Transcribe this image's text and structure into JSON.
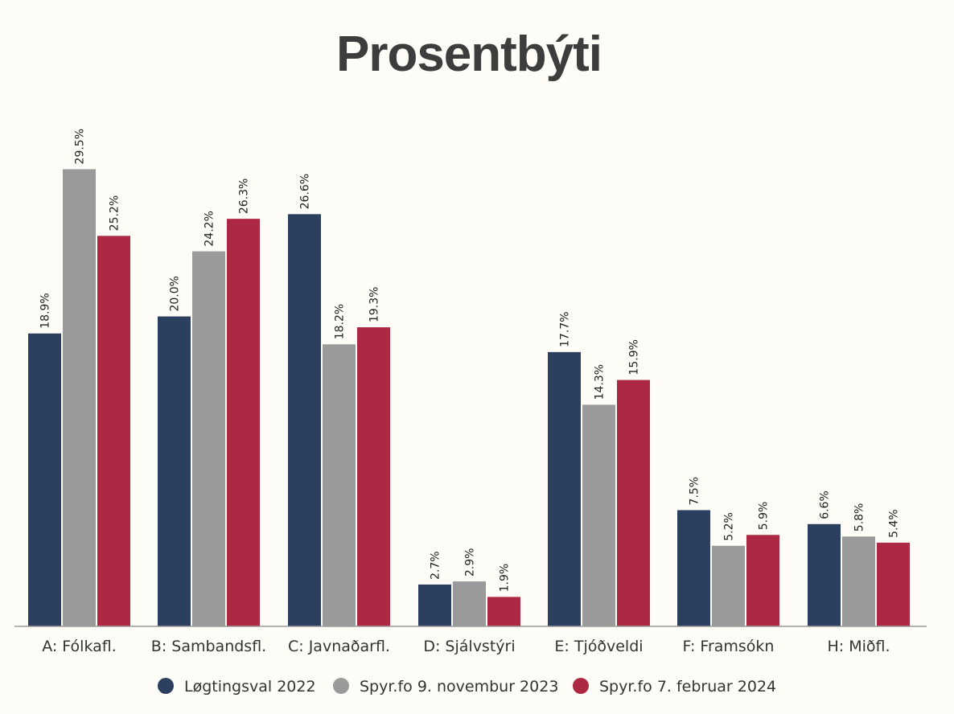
{
  "chart_data": {
    "type": "bar",
    "title": "Prosentbýti",
    "xlabel": "",
    "ylabel": "",
    "ylim": [
      0,
      33
    ],
    "grid": false,
    "legend_position": "bottom",
    "value_suffix": "%",
    "categories": [
      "A: Fólkafl.",
      "B: Sambandsfl.",
      "C: Javnaðarfl.",
      "D: Sjálvstýri",
      "E: Tjóðveldi",
      "F: Framsókn",
      "H: Miðfl."
    ],
    "series": [
      {
        "name": "Løgtingsval 2022",
        "color": "#2c3f5f",
        "values": [
          18.9,
          20.0,
          26.6,
          2.7,
          17.7,
          7.5,
          6.6
        ]
      },
      {
        "name": "Spyr.fo 9. novembur 2023",
        "color": "#9a9a9a",
        "values": [
          29.5,
          24.2,
          18.2,
          2.9,
          14.3,
          5.2,
          5.8
        ]
      },
      {
        "name": "Spyr.fo 7. februar 2024",
        "color": "#ad2842",
        "values": [
          25.2,
          26.3,
          19.3,
          1.9,
          15.9,
          5.9,
          5.4
        ]
      }
    ]
  }
}
